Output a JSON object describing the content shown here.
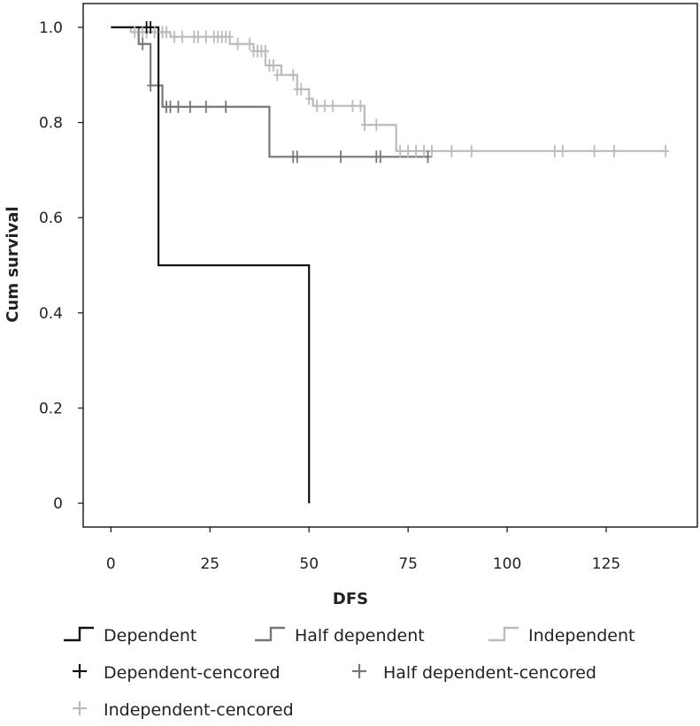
{
  "chart_data": {
    "type": "line",
    "subtype": "kaplan-meier",
    "xlabel": "DFS",
    "ylabel": "Cum survival",
    "xlim": [
      -7,
      148
    ],
    "ylim": [
      -0.05,
      1.05
    ],
    "xticks": [
      0,
      25,
      50,
      75,
      100,
      125
    ],
    "yticks": [
      0,
      0.2,
      0.4,
      0.6,
      0.8,
      1.0
    ],
    "ytick_labels": [
      "0",
      "0.2",
      "0.4",
      "0.6",
      "0.8",
      "1.0"
    ],
    "series": [
      {
        "name": "Dependent",
        "color": "#111111",
        "steps": [
          [
            0,
            1.0
          ],
          [
            12,
            0.5
          ],
          [
            50,
            0.0
          ]
        ],
        "end_x": 50
      },
      {
        "name": "Half dependent",
        "color": "#777777",
        "steps": [
          [
            5,
            1.0
          ],
          [
            7,
            0.965
          ],
          [
            10,
            0.878
          ],
          [
            13,
            0.833
          ],
          [
            40,
            0.728
          ]
        ],
        "end_x": 80
      },
      {
        "name": "Independent",
        "color": "#bbbbbb",
        "steps": [
          [
            0,
            1.0
          ],
          [
            5,
            0.99
          ],
          [
            15,
            0.98
          ],
          [
            30,
            0.965
          ],
          [
            36,
            0.95
          ],
          [
            39,
            0.92
          ],
          [
            43,
            0.9
          ],
          [
            47,
            0.87
          ],
          [
            50,
            0.85
          ],
          [
            51,
            0.835
          ],
          [
            64,
            0.795
          ],
          [
            72,
            0.74
          ]
        ],
        "end_x": 140
      }
    ],
    "censored": [
      {
        "name": "Dependent-cencored",
        "color": "#111111",
        "x": [
          9,
          10
        ],
        "y": [
          1.0,
          1.0
        ]
      },
      {
        "name": "Half dependent-cencored",
        "color": "#777777",
        "x": [
          8,
          10,
          14,
          15,
          17,
          20,
          24,
          29,
          46,
          47,
          58,
          67,
          68,
          80
        ],
        "y": [
          0.965,
          0.878,
          0.833,
          0.833,
          0.833,
          0.833,
          0.833,
          0.833,
          0.728,
          0.728,
          0.728,
          0.728,
          0.728,
          0.728
        ]
      },
      {
        "name": "Independent-cencored",
        "color": "#bbbbbb",
        "x": [
          6,
          8,
          9,
          11,
          13,
          14,
          16,
          18,
          21,
          22,
          24,
          26,
          27,
          28,
          29,
          30,
          32,
          35,
          36,
          37,
          38,
          39,
          40,
          41,
          42,
          46,
          47,
          48,
          50,
          52,
          54,
          56,
          61,
          63,
          64,
          67,
          73,
          75,
          77,
          79,
          81,
          86,
          91,
          112,
          114,
          122,
          127,
          140
        ],
        "y": [
          0.99,
          0.99,
          0.99,
          0.99,
          0.99,
          0.99,
          0.98,
          0.98,
          0.98,
          0.98,
          0.98,
          0.98,
          0.98,
          0.98,
          0.98,
          0.98,
          0.965,
          0.965,
          0.95,
          0.95,
          0.95,
          0.95,
          0.92,
          0.92,
          0.9,
          0.9,
          0.87,
          0.87,
          0.85,
          0.835,
          0.835,
          0.835,
          0.835,
          0.835,
          0.795,
          0.795,
          0.74,
          0.74,
          0.74,
          0.74,
          0.74,
          0.74,
          0.74,
          0.74,
          0.74,
          0.74,
          0.74,
          0.74
        ]
      }
    ],
    "legend": {
      "placement": "bottom",
      "entries": [
        {
          "label": "Dependent",
          "marker": "step",
          "color": "#111111"
        },
        {
          "label": "Half dependent",
          "marker": "step",
          "color": "#777777"
        },
        {
          "label": "Independent",
          "marker": "step",
          "color": "#bbbbbb"
        },
        {
          "label": "Dependent-cencored",
          "marker": "plus",
          "color": "#111111"
        },
        {
          "label": "Half dependent-cencored",
          "marker": "plus",
          "color": "#777777"
        },
        {
          "label": "Independent-cencored",
          "marker": "plus",
          "color": "#bbbbbb"
        }
      ]
    },
    "grid": false
  }
}
